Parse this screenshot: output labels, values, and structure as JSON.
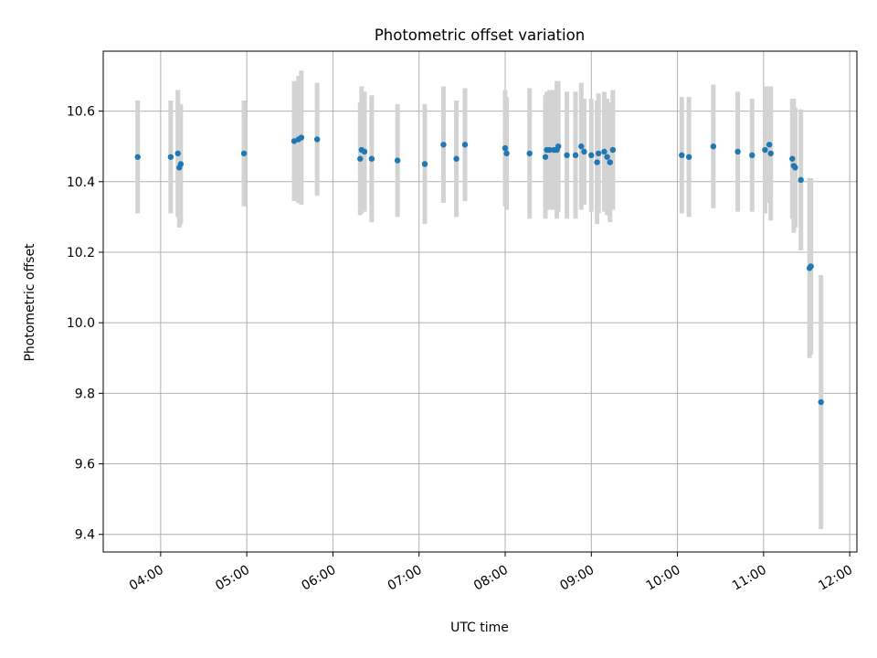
{
  "chart_data": {
    "type": "scatter",
    "title": "Photometric offset variation",
    "xlabel": "UTC time",
    "ylabel": "Photometric offset",
    "x_unit": "time of day (UTC)",
    "xlim": [
      "03:20",
      "12:05"
    ],
    "ylim": [
      9.35,
      10.77
    ],
    "x_ticks": [
      "04:00",
      "05:00",
      "06:00",
      "07:00",
      "08:00",
      "09:00",
      "10:00",
      "11:00",
      "12:00"
    ],
    "y_ticks": [
      9.4,
      9.6,
      9.8,
      10.0,
      10.2,
      10.4,
      10.6
    ],
    "y_tick_labels": [
      "9.4",
      "9.6",
      "9.8",
      "10.0",
      "10.2",
      "10.4",
      "10.6"
    ],
    "grid": true,
    "marker_color": "#1f77b4",
    "errorbar_color": "#d3d3d3",
    "series": [
      {
        "x": [
          "03:44",
          "04:07",
          "04:12",
          "04:13",
          "04:14",
          "04:58",
          "05:33",
          "05:36",
          "05:38",
          "05:49",
          "06:19",
          "06:20",
          "06:22",
          "06:27",
          "06:45",
          "07:04",
          "07:17",
          "07:26",
          "07:32",
          "08:00",
          "08:01",
          "08:17",
          "08:28",
          "08:29",
          "08:31",
          "08:34",
          "08:36",
          "08:37",
          "08:43",
          "08:49",
          "08:53",
          "08:55",
          "09:00",
          "09:04",
          "09:05",
          "09:09",
          "09:11",
          "09:13",
          "09:15",
          "10:03",
          "10:08",
          "10:25",
          "10:42",
          "10:52",
          "11:01",
          "11:04",
          "11:05",
          "11:20",
          "11:21",
          "11:22",
          "11:26",
          "11:32",
          "11:33",
          "11:40"
        ],
        "y": [
          10.47,
          10.47,
          10.48,
          10.44,
          10.45,
          10.48,
          10.515,
          10.52,
          10.525,
          10.52,
          10.465,
          10.49,
          10.485,
          10.465,
          10.46,
          10.45,
          10.505,
          10.465,
          10.505,
          10.495,
          10.48,
          10.48,
          10.47,
          10.49,
          10.49,
          10.49,
          10.49,
          10.5,
          10.475,
          10.475,
          10.5,
          10.485,
          10.475,
          10.455,
          10.48,
          10.485,
          10.47,
          10.455,
          10.49,
          10.475,
          10.47,
          10.5,
          10.485,
          10.475,
          10.49,
          10.505,
          10.48,
          10.465,
          10.445,
          10.44,
          10.405,
          10.155,
          10.16,
          9.775
        ],
        "yerr": [
          0.16,
          0.16,
          0.18,
          0.17,
          0.17,
          0.15,
          0.17,
          0.18,
          0.19,
          0.16,
          0.16,
          0.18,
          0.17,
          0.18,
          0.16,
          0.17,
          0.165,
          0.165,
          0.16,
          0.165,
          0.16,
          0.185,
          0.175,
          0.165,
          0.17,
          0.17,
          0.195,
          0.185,
          0.18,
          0.18,
          0.18,
          0.15,
          0.16,
          0.175,
          0.17,
          0.17,
          0.165,
          0.17,
          0.17,
          0.165,
          0.17,
          0.175,
          0.17,
          0.16,
          0.18,
          0.165,
          0.19,
          0.17,
          0.19,
          0.17,
          0.2,
          0.255,
          0.25,
          0.36
        ]
      }
    ]
  }
}
